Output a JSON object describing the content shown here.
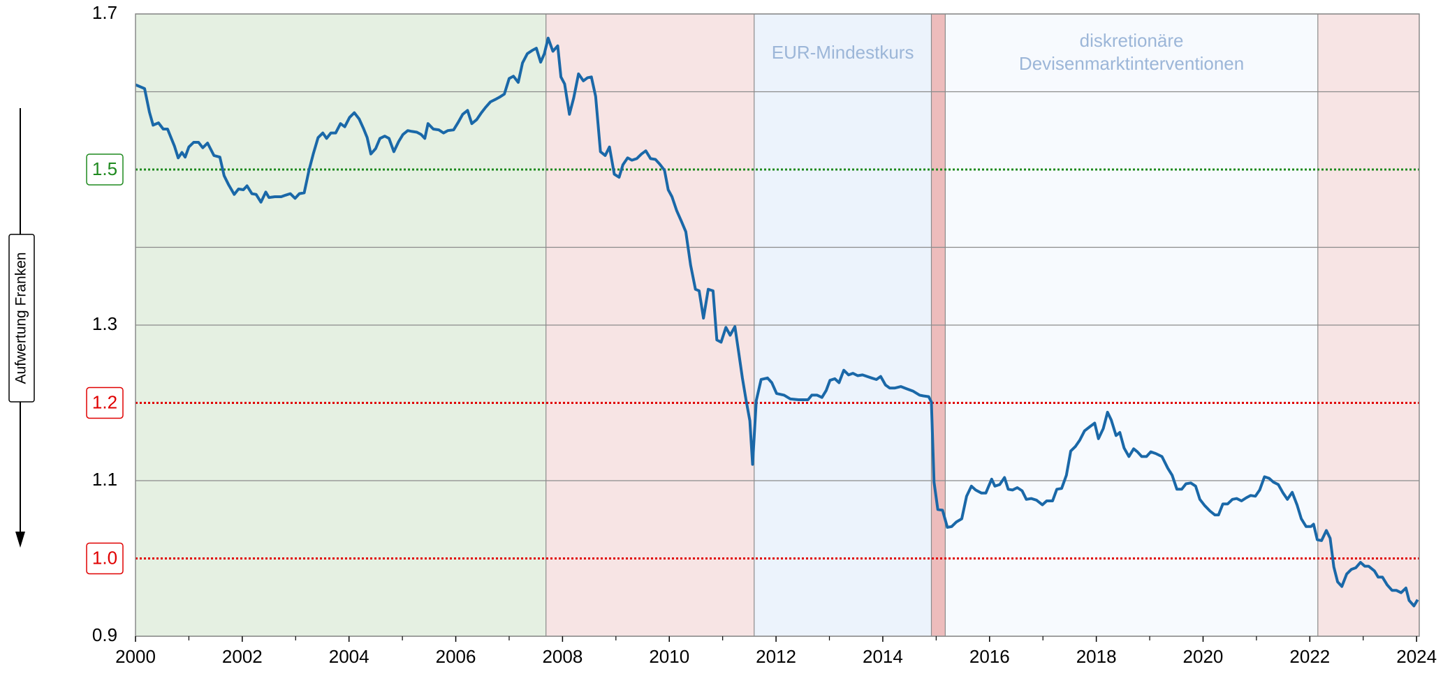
{
  "chart_data": {
    "type": "line",
    "annotation": "Aufwertung Franken",
    "xlim": [
      2000,
      2024.05
    ],
    "xticks": [
      2000,
      2002,
      2004,
      2006,
      2008,
      2010,
      2012,
      2014,
      2016,
      2018,
      2020,
      2022,
      2024
    ],
    "xminor_ticks": [
      2001,
      2003,
      2005,
      2007,
      2009,
      2011,
      2013,
      2015,
      2017,
      2019,
      2021,
      2023
    ],
    "ylim": [
      0.9,
      1.7
    ],
    "yticks": [
      0.9,
      1.1,
      1.3,
      1.7
    ],
    "grid_lines": [
      1.4,
      1.6
    ],
    "reference_lines": [
      {
        "value": 1.5,
        "color": "#1f8a1f"
      },
      {
        "value": 1.2,
        "color": "#e00000"
      },
      {
        "value": 1,
        "label": "1.0",
        "color": "#e00000"
      }
    ],
    "regions": [
      {
        "start": 2000,
        "end": 2007.69,
        "color": "#e5f0e2"
      },
      {
        "start": 2007.69,
        "end": 2011.59,
        "color": "#f7e4e4"
      },
      {
        "start": 2011.59,
        "end": 2014.91,
        "color": "#ecf3fc",
        "label": [
          "EUR-Mindestkurs"
        ]
      },
      {
        "start": 2014.91,
        "end": 2015.17,
        "color": "#edbcbc"
      },
      {
        "start": 2015.17,
        "end": 2022.15,
        "color": "#f7fafe",
        "label": [
          "diskretionäre",
          "Devisenmarktinterventionen"
        ]
      },
      {
        "start": 2022.15,
        "end": 2024.05,
        "color": "#f7e4e4"
      }
    ],
    "color": "#1a68a8",
    "x": [
      2000.0,
      2000.17,
      2000.26,
      2000.33,
      2000.43,
      2000.52,
      2000.6,
      2000.73,
      2000.8,
      2000.87,
      2000.93,
      2001.0,
      2001.09,
      2001.18,
      2001.26,
      2001.35,
      2001.47,
      2001.58,
      2001.66,
      2001.74,
      2001.85,
      2001.93,
      2002.02,
      2002.09,
      2002.18,
      2002.26,
      2002.35,
      2002.44,
      2002.5,
      2002.61,
      2002.73,
      2002.81,
      2002.9,
      2002.99,
      2003.07,
      2003.16,
      2003.25,
      2003.33,
      2003.42,
      2003.51,
      2003.58,
      2003.66,
      2003.75,
      2003.84,
      2003.92,
      2004.01,
      2004.1,
      2004.19,
      2004.27,
      2004.34,
      2004.41,
      2004.5,
      2004.58,
      2004.67,
      2004.75,
      2004.84,
      2004.93,
      2005.01,
      2005.1,
      2005.18,
      2005.27,
      2005.35,
      2005.42,
      2005.48,
      2005.58,
      2005.68,
      2005.77,
      2005.85,
      2005.96,
      2006.04,
      2006.13,
      2006.22,
      2006.3,
      2006.39,
      2006.48,
      2006.56,
      2006.65,
      2006.74,
      2006.82,
      2006.91,
      2007.0,
      2007.08,
      2007.17,
      2007.25,
      2007.34,
      2007.43,
      2007.51,
      2007.59,
      2007.66,
      2007.73,
      2007.82,
      2007.91,
      2007.97,
      2008.04,
      2008.13,
      2008.21,
      2008.3,
      2008.39,
      2008.47,
      2008.54,
      2008.62,
      2008.71,
      2008.8,
      2008.88,
      2008.97,
      2009.06,
      2009.13,
      2009.22,
      2009.3,
      2009.39,
      2009.48,
      2009.56,
      2009.65,
      2009.74,
      2009.82,
      2009.91,
      2009.98,
      2010.05,
      2010.14,
      2010.23,
      2010.31,
      2010.4,
      2010.49,
      2010.56,
      2010.64,
      2010.73,
      2010.82,
      2010.89,
      2010.97,
      2011.06,
      2011.14,
      2011.23,
      2011.3,
      2011.37,
      2011.44,
      2011.51,
      2011.56,
      2011.63,
      2011.72,
      2011.84,
      2011.92,
      2012.01,
      2012.15,
      2012.27,
      2012.42,
      2012.6,
      2012.67,
      2012.77,
      2012.86,
      2012.94,
      2013.01,
      2013.1,
      2013.18,
      2013.27,
      2013.36,
      2013.44,
      2013.53,
      2013.62,
      2013.79,
      2013.88,
      2013.96,
      2014.05,
      2014.13,
      2014.22,
      2014.34,
      2014.45,
      2014.57,
      2014.69,
      2014.76,
      2014.86,
      2014.91,
      2014.96,
      2015.03,
      2015.12,
      2015.21,
      2015.29,
      2015.38,
      2015.48,
      2015.57,
      2015.66,
      2015.74,
      2015.85,
      2015.93,
      2016.04,
      2016.1,
      2016.19,
      2016.28,
      2016.35,
      2016.43,
      2016.52,
      2016.61,
      2016.69,
      2016.78,
      2016.88,
      2016.99,
      2017.07,
      2017.18,
      2017.26,
      2017.35,
      2017.44,
      2017.52,
      2017.61,
      2017.69,
      2017.78,
      2017.89,
      2017.97,
      2018.04,
      2018.13,
      2018.21,
      2018.28,
      2018.37,
      2018.44,
      2018.52,
      2018.61,
      2018.7,
      2018.77,
      2018.85,
      2018.94,
      2019.02,
      2019.11,
      2019.23,
      2019.34,
      2019.42,
      2019.51,
      2019.6,
      2019.68,
      2019.77,
      2019.86,
      2019.94,
      2020.03,
      2020.13,
      2020.22,
      2020.29,
      2020.37,
      2020.46,
      2020.55,
      2020.63,
      2020.72,
      2020.81,
      2020.89,
      2020.98,
      2021.06,
      2021.15,
      2021.24,
      2021.32,
      2021.41,
      2021.5,
      2021.58,
      2021.67,
      2021.76,
      2021.84,
      2021.93,
      2022.02,
      2022.07,
      2022.14,
      2022.22,
      2022.31,
      2022.38,
      2022.45,
      2022.52,
      2022.6,
      2022.69,
      2022.78,
      2022.86,
      2022.95,
      2023.03,
      2023.1,
      2023.21,
      2023.28,
      2023.36,
      2023.45,
      2023.54,
      2023.62,
      2023.71,
      2023.8,
      2023.86,
      2023.95,
      2024.02
    ],
    "values": [
      1.609,
      1.604,
      1.574,
      1.557,
      1.56,
      1.552,
      1.552,
      1.53,
      1.515,
      1.522,
      1.516,
      1.529,
      1.535,
      1.535,
      1.528,
      1.534,
      1.518,
      1.516,
      1.492,
      1.481,
      1.468,
      1.475,
      1.474,
      1.479,
      1.469,
      1.468,
      1.458,
      1.471,
      1.464,
      1.465,
      1.465,
      1.467,
      1.469,
      1.463,
      1.469,
      1.47,
      1.499,
      1.52,
      1.541,
      1.547,
      1.54,
      1.547,
      1.547,
      1.559,
      1.555,
      1.567,
      1.573,
      1.565,
      1.553,
      1.541,
      1.52,
      1.527,
      1.54,
      1.543,
      1.54,
      1.523,
      1.536,
      1.545,
      1.55,
      1.549,
      1.548,
      1.545,
      1.54,
      1.559,
      1.552,
      1.551,
      1.547,
      1.55,
      1.551,
      1.56,
      1.571,
      1.576,
      1.559,
      1.564,
      1.573,
      1.58,
      1.587,
      1.59,
      1.593,
      1.597,
      1.617,
      1.62,
      1.612,
      1.637,
      1.649,
      1.653,
      1.656,
      1.638,
      1.649,
      1.669,
      1.652,
      1.659,
      1.619,
      1.61,
      1.571,
      1.592,
      1.623,
      1.614,
      1.618,
      1.619,
      1.594,
      1.523,
      1.518,
      1.529,
      1.494,
      1.49,
      1.506,
      1.515,
      1.512,
      1.514,
      1.52,
      1.524,
      1.514,
      1.513,
      1.507,
      1.499,
      1.474,
      1.465,
      1.447,
      1.433,
      1.42,
      1.377,
      1.346,
      1.344,
      1.309,
      1.346,
      1.344,
      1.281,
      1.278,
      1.297,
      1.287,
      1.298,
      1.265,
      1.232,
      1.203,
      1.177,
      1.121,
      1.203,
      1.23,
      1.232,
      1.226,
      1.212,
      1.21,
      1.205,
      1.204,
      1.204,
      1.21,
      1.21,
      1.207,
      1.216,
      1.229,
      1.231,
      1.226,
      1.242,
      1.236,
      1.238,
      1.235,
      1.236,
      1.232,
      1.23,
      1.234,
      1.223,
      1.219,
      1.219,
      1.221,
      1.218,
      1.215,
      1.21,
      1.209,
      1.208,
      1.201,
      1.098,
      1.063,
      1.062,
      1.04,
      1.041,
      1.047,
      1.051,
      1.08,
      1.093,
      1.088,
      1.084,
      1.084,
      1.102,
      1.093,
      1.095,
      1.104,
      1.089,
      1.088,
      1.091,
      1.087,
      1.076,
      1.077,
      1.075,
      1.069,
      1.074,
      1.074,
      1.089,
      1.09,
      1.107,
      1.138,
      1.144,
      1.152,
      1.164,
      1.17,
      1.174,
      1.154,
      1.167,
      1.188,
      1.178,
      1.158,
      1.162,
      1.142,
      1.131,
      1.141,
      1.137,
      1.131,
      1.131,
      1.137,
      1.135,
      1.131,
      1.116,
      1.107,
      1.089,
      1.089,
      1.096,
      1.097,
      1.093,
      1.076,
      1.068,
      1.061,
      1.056,
      1.056,
      1.07,
      1.07,
      1.076,
      1.077,
      1.074,
      1.078,
      1.081,
      1.08,
      1.088,
      1.105,
      1.103,
      1.098,
      1.095,
      1.084,
      1.076,
      1.085,
      1.069,
      1.051,
      1.041,
      1.041,
      1.044,
      1.024,
      1.023,
      1.036,
      1.026,
      0.989,
      0.97,
      0.964,
      0.98,
      0.986,
      0.988,
      0.995,
      0.99,
      0.99,
      0.984,
      0.976,
      0.976,
      0.966,
      0.959,
      0.959,
      0.956,
      0.962,
      0.946,
      0.939,
      0.947
    ]
  }
}
